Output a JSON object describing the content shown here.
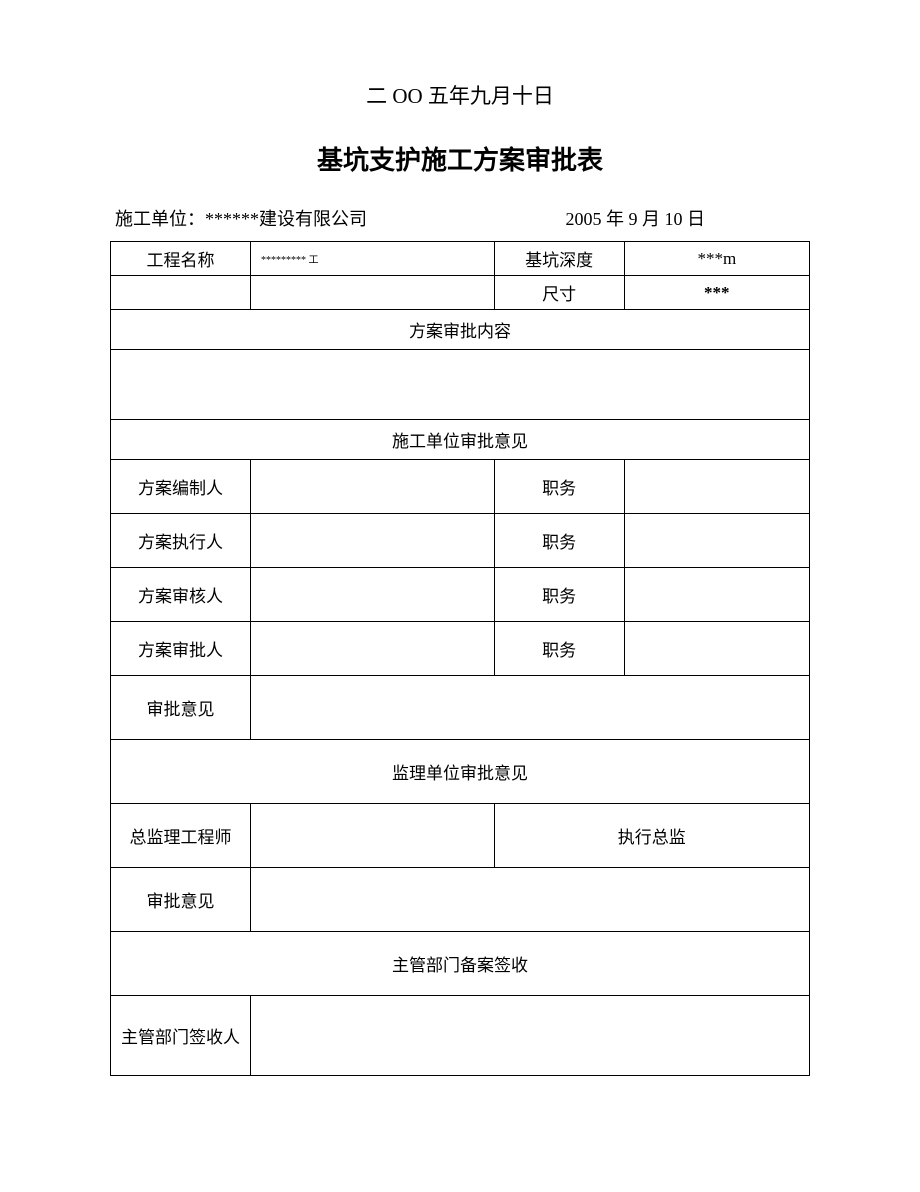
{
  "header_date": "二 OO 五年九月十日",
  "title": "基坑支护施工方案审批表",
  "info": {
    "unit_label": "施工单位：",
    "unit_value": "******建设有限公司",
    "date": "2005 年 9 月 10 日"
  },
  "row1": {
    "project_name_label": "工程名称",
    "project_name_value": "********* 工",
    "depth_label": "基坑深度",
    "depth_value": "***m"
  },
  "row2": {
    "size_label": "尺寸",
    "size_value": "***"
  },
  "section_plan_content": "方案审批内容",
  "section_construction_opinion": "施工单位审批意见",
  "persons": {
    "compiler": "方案编制人",
    "executor": "方案执行人",
    "reviewer": "方案审核人",
    "approver": "方案审批人",
    "position": "职务"
  },
  "approval_opinion": "审批意见",
  "section_supervision": "监理单位审批意见",
  "chief_engineer": "总监理工程师",
  "exec_director": "执行总监",
  "section_filing": "主管部门备案签收",
  "dept_signatory": "主管部门签收人"
}
